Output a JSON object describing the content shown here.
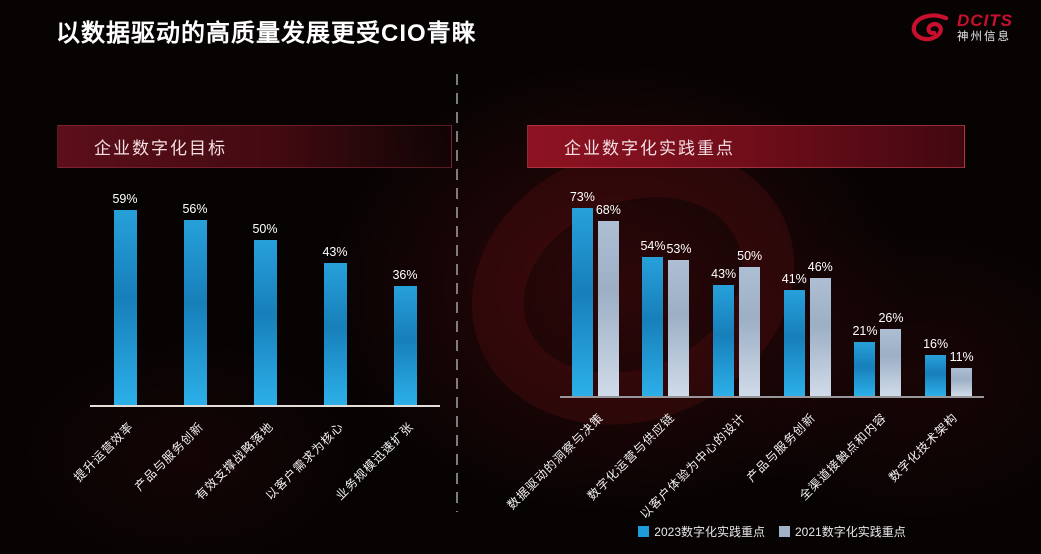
{
  "page": {
    "title": "以数据驱动的高质量发展更受CIO青睐"
  },
  "logo": {
    "brand": "DCITS",
    "subtitle": "神州信息",
    "brand_color": "#c8102e"
  },
  "colors": {
    "bar_blue": "#1E9CD7",
    "bar_gray": "#B6C5D8",
    "accent_red": "#8e1322",
    "background": "#070303"
  },
  "chart_data": [
    {
      "type": "bar",
      "title": "企业数字化目标",
      "categories": [
        "提升运营效率",
        "产品与服务创新",
        "有效支撑战略落地",
        "以客户需求为核心",
        "业务规模迅速扩张"
      ],
      "values": [
        59,
        56,
        50,
        43,
        36
      ],
      "value_suffix": "%",
      "ylim": [
        0,
        65
      ],
      "grid": false,
      "legend": "none",
      "bar_color": "#1E9CD7"
    },
    {
      "type": "bar",
      "title": "企业数字化实践重点",
      "categories": [
        "数据驱动的洞察与决策",
        "数字化运营与供应链",
        "以客户体验为中心的设计",
        "产品与服务创新",
        "全渠道接触点和内容",
        "数字化技术架构"
      ],
      "series": [
        {
          "name": "2023数字化实践重点",
          "values": [
            73,
            54,
            43,
            41,
            21,
            16
          ],
          "color": "#1E9CD7"
        },
        {
          "name": "2021数字化实践重点",
          "values": [
            68,
            53,
            50,
            46,
            26,
            11
          ],
          "color": "#9FB2C8"
        }
      ],
      "value_suffix": "%",
      "ylim": [
        0,
        80
      ],
      "grid": false,
      "legend_position": "bottom"
    }
  ]
}
